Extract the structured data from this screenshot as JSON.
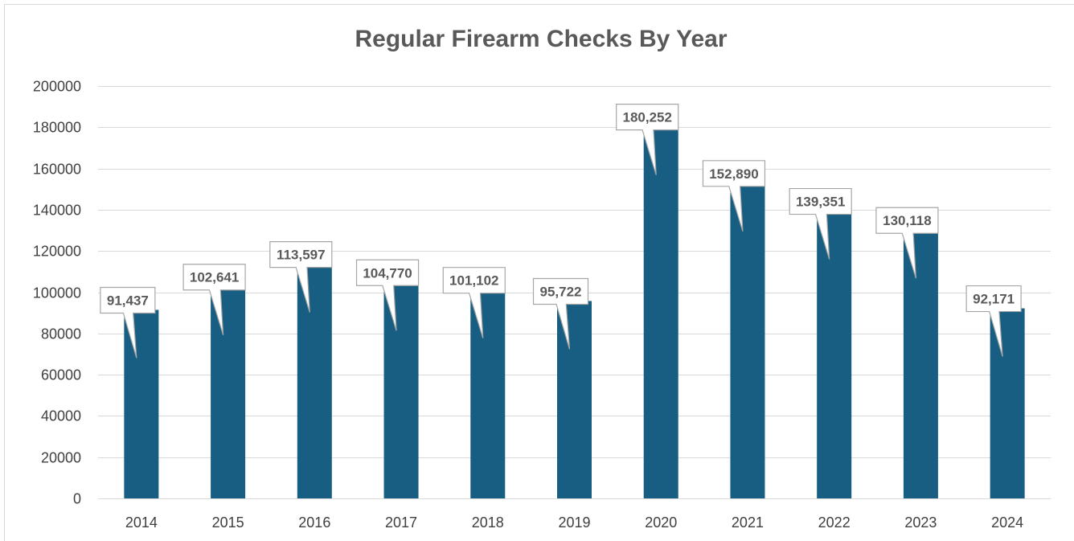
{
  "colors": {
    "bar": "#175E82",
    "grid": "#D9D9D9",
    "callout_border": "#A6A6A6",
    "text": "#595959",
    "axis_text": "#404040"
  },
  "chart_data": {
    "type": "bar",
    "title": "Regular Firearm Checks By Year",
    "xlabel": "",
    "ylabel": "",
    "categories": [
      "2014",
      "2015",
      "2016",
      "2017",
      "2018",
      "2019",
      "2020",
      "2021",
      "2022",
      "2023",
      "2024"
    ],
    "values": [
      91437,
      102641,
      113597,
      104770,
      101102,
      95722,
      180252,
      152890,
      139351,
      130118,
      92171
    ],
    "data_labels": [
      "91,437",
      "102,641",
      "113,597",
      "104,770",
      "101,102",
      "95,722",
      "180,252",
      "152,890",
      "139,351",
      "130,118",
      "92,171"
    ],
    "ylim": [
      0,
      200000
    ],
    "yticks": [
      "0",
      "20000",
      "40000",
      "60000",
      "80000",
      "100000",
      "120000",
      "140000",
      "160000",
      "180000",
      "200000"
    ],
    "grid": true,
    "legend": "none"
  }
}
